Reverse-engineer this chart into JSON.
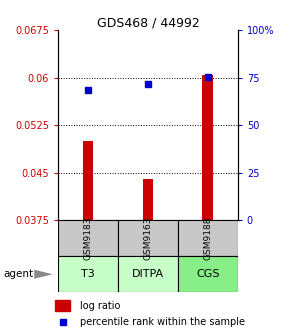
{
  "title": "GDS468 / 44992",
  "samples": [
    "GSM9183",
    "GSM9163",
    "GSM9188"
  ],
  "agents": [
    "T3",
    "DITPA",
    "CGS"
  ],
  "x_positions": [
    1,
    2,
    3
  ],
  "bar_base": 0.0375,
  "bar_tops": [
    0.05,
    0.044,
    0.0605
  ],
  "percentile_values": [
    0.058,
    0.059,
    0.0601
  ],
  "ylim": [
    0.0375,
    0.0675
  ],
  "yticks_left": [
    0.0375,
    0.045,
    0.0525,
    0.06,
    0.0675
  ],
  "yticks_right_pct": [
    0,
    25,
    50,
    75,
    100
  ],
  "ytick_labels_left": [
    "0.0375",
    "0.045",
    "0.0525",
    "0.06",
    "0.0675"
  ],
  "ytick_labels_right": [
    "0",
    "25",
    "50",
    "75",
    "100%"
  ],
  "dotted_lines": [
    0.06,
    0.0525,
    0.045
  ],
  "bar_color": "#cc0000",
  "dot_color": "#0000cc",
  "sample_box_color": "#c8c8c8",
  "agent_box_color_light": "#c8ffc8",
  "agent_box_color_dark": "#88ee88",
  "left_tick_color": "#cc0000",
  "right_tick_color": "#0000cc",
  "legend_bar_color": "#cc0000",
  "legend_dot_color": "#0000cc",
  "bar_width": 0.18
}
